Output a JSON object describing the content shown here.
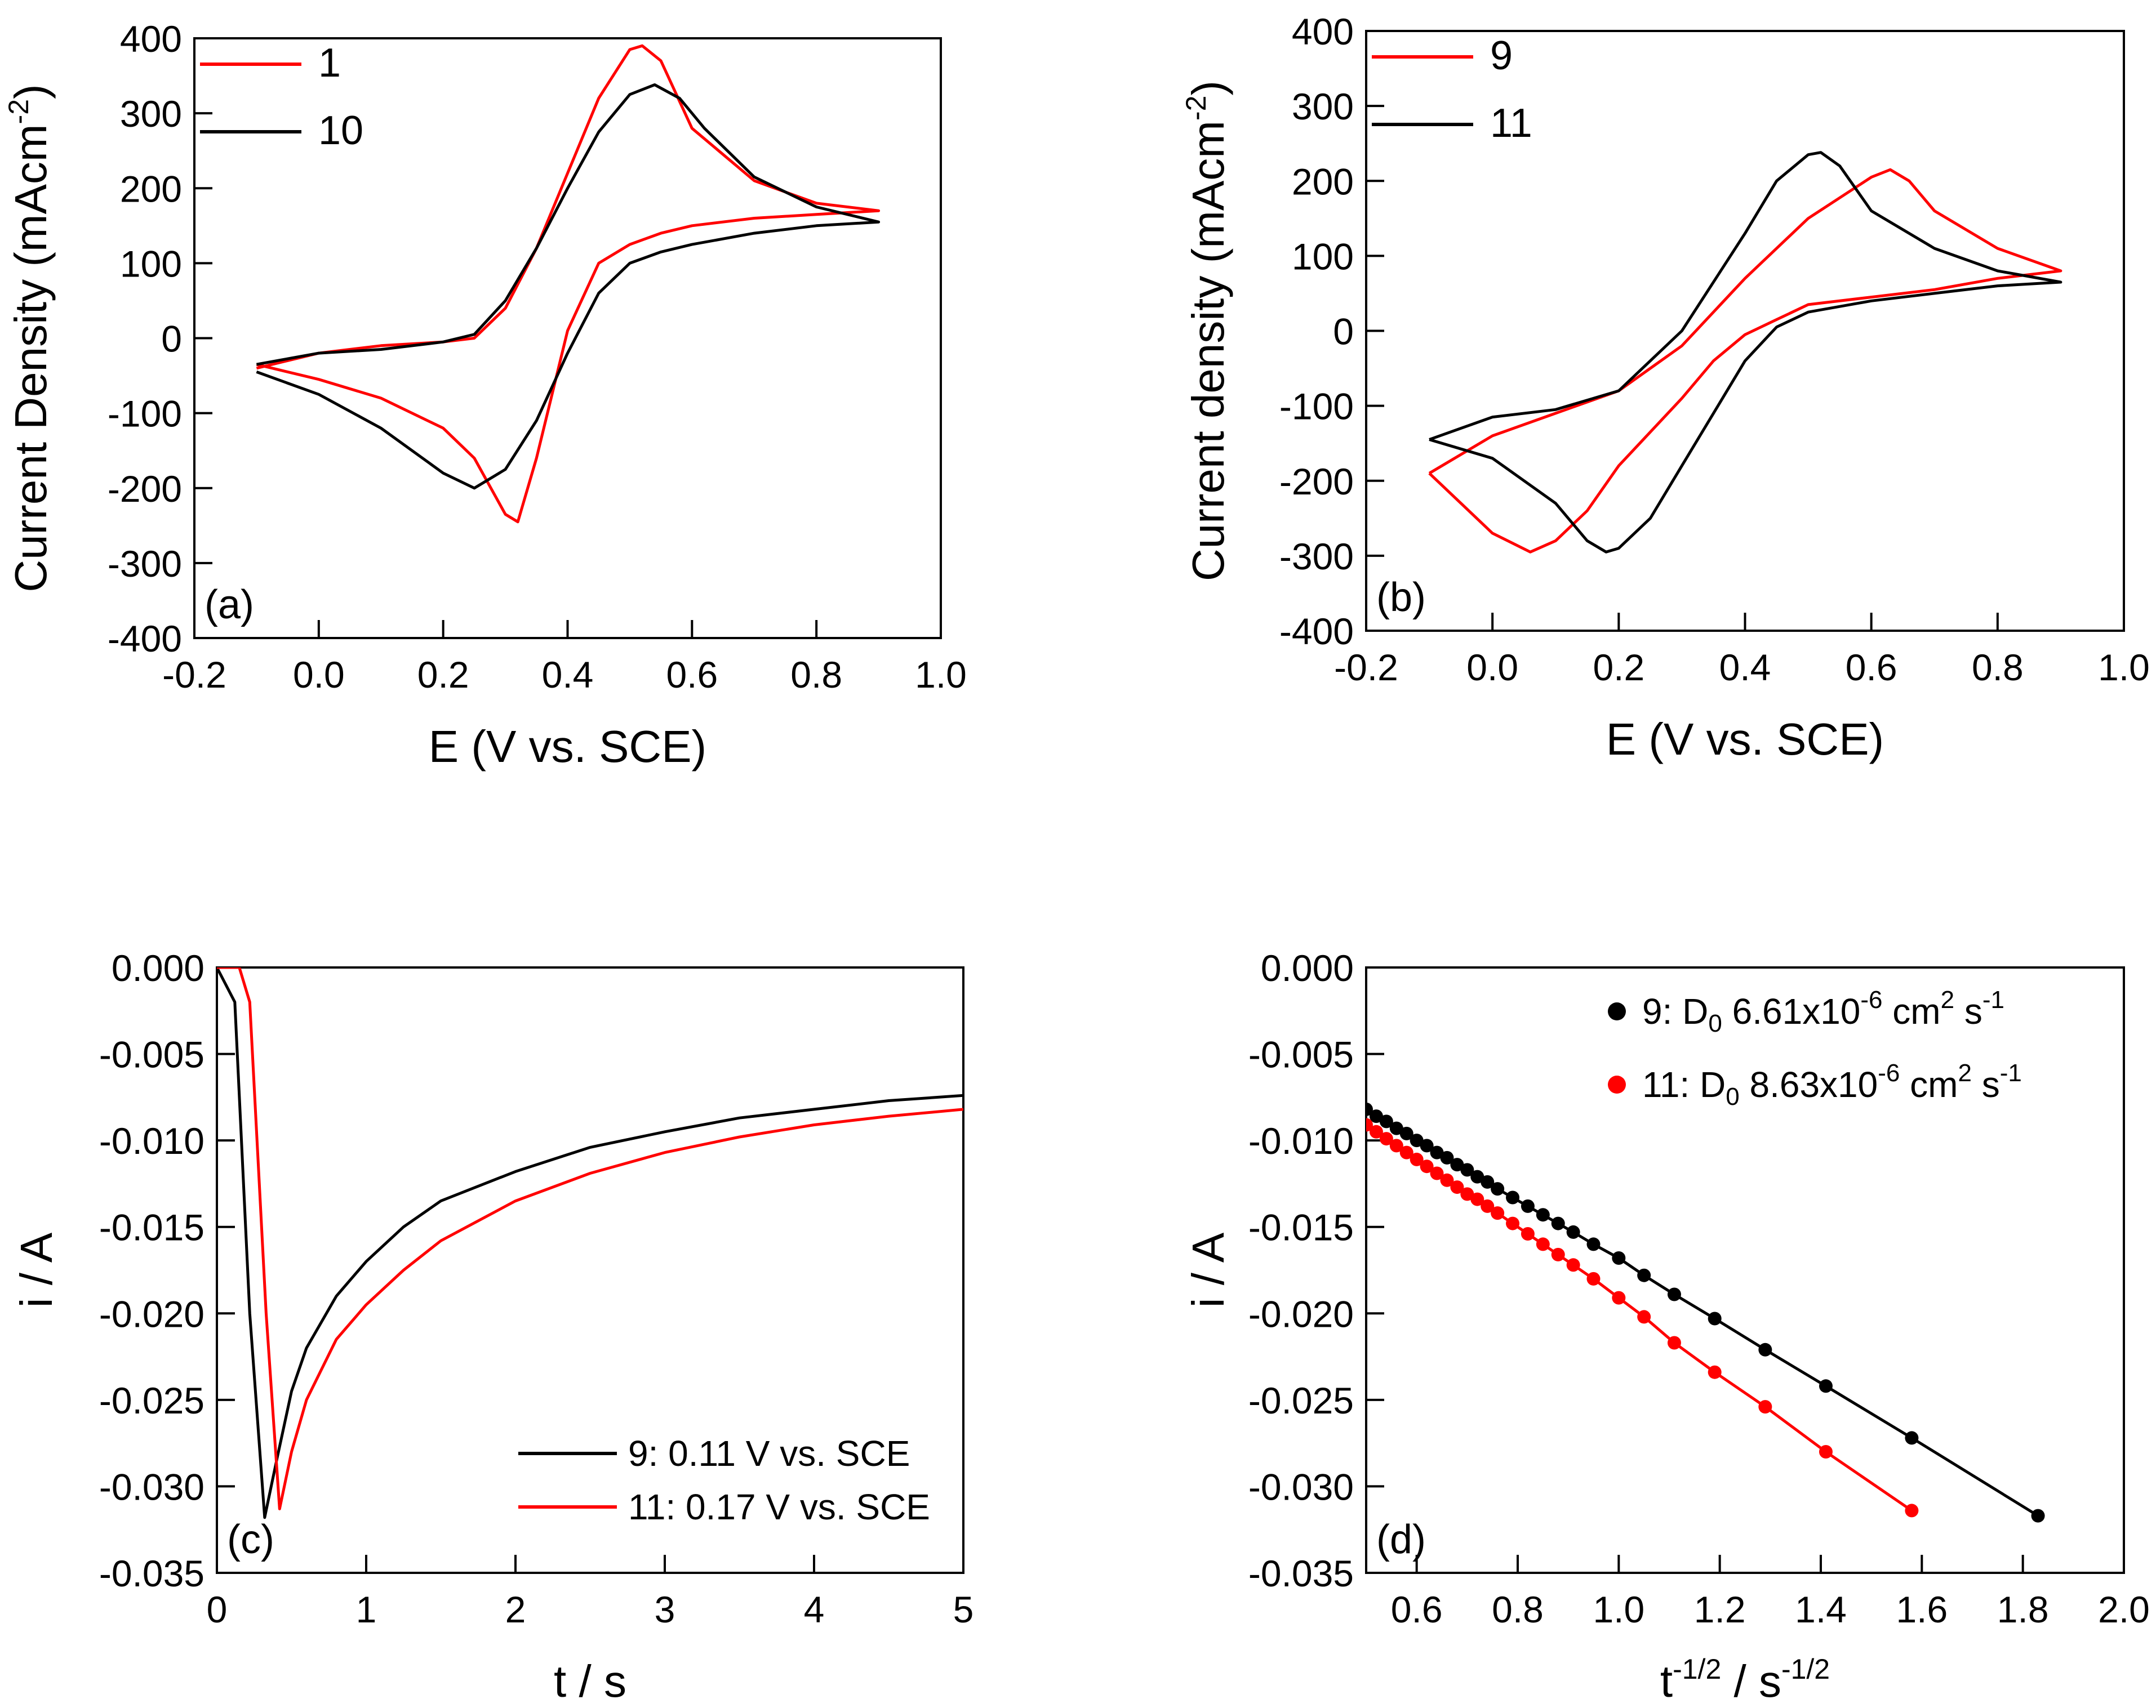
{
  "figure": {
    "colors": {
      "black": "#000000",
      "red": "#ff0000"
    },
    "panels": [
      "a",
      "b",
      "c",
      "d"
    ]
  },
  "chart_data": [
    {
      "id": "a",
      "type": "line",
      "panel_label": "(a)",
      "title": "",
      "xlabel": "E (V vs. SCE)",
      "ylabel_main": "Current Density (mAcm",
      "ylabel_sup": "-2",
      "ylabel_end": ")",
      "xlim": [
        -0.2,
        1.0
      ],
      "ylim": [
        -400,
        400
      ],
      "xticks": [
        -0.2,
        0.0,
        0.2,
        0.4,
        0.6,
        0.8,
        1.0
      ],
      "xtick_labels": [
        "-0.2",
        "0.0",
        "0.2",
        "0.4",
        "0.6",
        "0.8",
        "1.0"
      ],
      "yticks": [
        -400,
        -300,
        -200,
        -100,
        0,
        100,
        200,
        300,
        400
      ],
      "ytick_labels": [
        "-400",
        "-300",
        "-200",
        "-100",
        "0",
        "100",
        "200",
        "300",
        "400"
      ],
      "legend_position": "top-left",
      "grid": false,
      "series": [
        {
          "name": "1",
          "color": "#ff0000",
          "marker": "none",
          "x": [
            -0.1,
            0.0,
            0.1,
            0.2,
            0.25,
            0.3,
            0.35,
            0.4,
            0.45,
            0.5,
            0.52,
            0.55,
            0.6,
            0.7,
            0.8,
            0.9,
            0.8,
            0.7,
            0.6,
            0.55,
            0.5,
            0.45,
            0.4,
            0.35,
            0.32,
            0.3,
            0.25,
            0.2,
            0.1,
            0.0,
            -0.1
          ],
          "y": [
            -40,
            -20,
            -10,
            -5,
            0,
            40,
            120,
            220,
            320,
            385,
            390,
            370,
            280,
            210,
            180,
            170,
            165,
            160,
            150,
            140,
            125,
            100,
            10,
            -160,
            -245,
            -235,
            -160,
            -120,
            -80,
            -55,
            -35
          ]
        },
        {
          "name": "10",
          "color": "#000000",
          "marker": "none",
          "x": [
            -0.1,
            0.0,
            0.1,
            0.2,
            0.25,
            0.3,
            0.35,
            0.4,
            0.45,
            0.5,
            0.54,
            0.58,
            0.62,
            0.7,
            0.8,
            0.9,
            0.8,
            0.7,
            0.6,
            0.55,
            0.5,
            0.45,
            0.4,
            0.35,
            0.3,
            0.25,
            0.2,
            0.1,
            0.0,
            -0.1
          ],
          "y": [
            -35,
            -20,
            -15,
            -5,
            5,
            50,
            120,
            200,
            275,
            325,
            338,
            320,
            280,
            215,
            175,
            155,
            150,
            140,
            125,
            115,
            100,
            60,
            -20,
            -110,
            -175,
            -200,
            -180,
            -120,
            -75,
            -45
          ]
        }
      ]
    },
    {
      "id": "b",
      "type": "line",
      "panel_label": "(b)",
      "title": "",
      "xlabel": "E (V vs. SCE)",
      "ylabel_main": "Current density (mAcm",
      "ylabel_sup": "-2",
      "ylabel_end": ")",
      "xlim": [
        -0.2,
        1.0
      ],
      "ylim": [
        -400,
        400
      ],
      "xticks": [
        -0.2,
        0.0,
        0.2,
        0.4,
        0.6,
        0.8,
        1.0
      ],
      "xtick_labels": [
        "-0.2",
        "0.0",
        "0.2",
        "0.4",
        "0.6",
        "0.8",
        "1.0"
      ],
      "yticks": [
        -400,
        -300,
        -200,
        -100,
        0,
        100,
        200,
        300,
        400
      ],
      "ytick_labels": [
        "-400",
        "-300",
        "-200",
        "-100",
        "0",
        "100",
        "200",
        "300",
        "400"
      ],
      "legend_position": "top-left",
      "grid": false,
      "series": [
        {
          "name": "9",
          "color": "#ff0000",
          "marker": "none",
          "x": [
            -0.1,
            0.0,
            0.1,
            0.2,
            0.3,
            0.4,
            0.5,
            0.6,
            0.63,
            0.66,
            0.7,
            0.8,
            0.9,
            0.8,
            0.7,
            0.6,
            0.5,
            0.45,
            0.4,
            0.35,
            0.3,
            0.2,
            0.15,
            0.1,
            0.06,
            0.0,
            -0.1
          ],
          "y": [
            -190,
            -140,
            -110,
            -80,
            -20,
            70,
            150,
            205,
            215,
            200,
            160,
            110,
            80,
            70,
            55,
            45,
            35,
            15,
            -5,
            -40,
            -90,
            -180,
            -240,
            -280,
            -295,
            -270,
            -190
          ]
        },
        {
          "name": "11",
          "color": "#000000",
          "marker": "none",
          "x": [
            -0.1,
            0.0,
            0.1,
            0.2,
            0.3,
            0.4,
            0.45,
            0.5,
            0.52,
            0.55,
            0.6,
            0.7,
            0.8,
            0.9,
            0.8,
            0.7,
            0.6,
            0.5,
            0.45,
            0.4,
            0.35,
            0.3,
            0.25,
            0.2,
            0.18,
            0.15,
            0.1,
            0.0,
            -0.1
          ],
          "y": [
            -145,
            -115,
            -105,
            -80,
            0,
            130,
            200,
            235,
            238,
            220,
            160,
            110,
            80,
            65,
            60,
            50,
            40,
            25,
            5,
            -40,
            -110,
            -180,
            -250,
            -290,
            -295,
            -280,
            -230,
            -170,
            -145
          ]
        }
      ]
    },
    {
      "id": "c",
      "type": "line",
      "panel_label": "(c)",
      "title": "",
      "xlabel": "t / s",
      "ylabel": "i / A",
      "xlim": [
        0,
        5
      ],
      "ylim": [
        -0.035,
        0.0
      ],
      "xticks": [
        0,
        1,
        2,
        3,
        4,
        5
      ],
      "xtick_labels": [
        "0",
        "1",
        "2",
        "3",
        "4",
        "5"
      ],
      "yticks": [
        0.0,
        -0.005,
        -0.01,
        -0.015,
        -0.02,
        -0.025,
        -0.03,
        -0.035
      ],
      "ytick_labels": [
        "0.000",
        "-0.005",
        "-0.010",
        "-0.015",
        "-0.020",
        "-0.025",
        "-0.030",
        "-0.035"
      ],
      "legend_position": "bottom-right",
      "grid": false,
      "series": [
        {
          "name": "9: 0.11 V vs. SCE",
          "color": "#000000",
          "marker": "none",
          "x": [
            0.0,
            0.12,
            0.22,
            0.32,
            0.4,
            0.5,
            0.6,
            0.8,
            1.0,
            1.25,
            1.5,
            2.0,
            2.5,
            3.0,
            3.5,
            4.0,
            4.5,
            5.0
          ],
          "y": [
            0.0,
            -0.002,
            -0.02,
            -0.0318,
            -0.0285,
            -0.0245,
            -0.022,
            -0.019,
            -0.017,
            -0.015,
            -0.0135,
            -0.0118,
            -0.0104,
            -0.0095,
            -0.0087,
            -0.0082,
            -0.0077,
            -0.0074
          ]
        },
        {
          "name": "11: 0.17 V vs. SCE",
          "color": "#ff0000",
          "marker": "none",
          "x": [
            0.0,
            0.15,
            0.22,
            0.33,
            0.42,
            0.5,
            0.6,
            0.8,
            1.0,
            1.25,
            1.5,
            2.0,
            2.5,
            3.0,
            3.5,
            4.0,
            4.5,
            5.0
          ],
          "y": [
            0.0,
            0.0,
            -0.002,
            -0.02,
            -0.0313,
            -0.028,
            -0.025,
            -0.0215,
            -0.0195,
            -0.0175,
            -0.0158,
            -0.0135,
            -0.0119,
            -0.0107,
            -0.0098,
            -0.0091,
            -0.0086,
            -0.0082
          ]
        }
      ]
    },
    {
      "id": "d",
      "type": "scatter",
      "panel_label": "(d)",
      "title": "",
      "xlabel_main": "t",
      "xlabel_sup": "-1/2",
      "xlabel_mid": " / s",
      "xlabel_sup2": "-1/2",
      "ylabel": "i / A",
      "xlim": [
        0.5,
        2.0
      ],
      "ylim": [
        -0.035,
        0.0
      ],
      "xticks": [
        0.6,
        0.8,
        1.0,
        1.2,
        1.4,
        1.6,
        1.8,
        2.0
      ],
      "xtick_labels": [
        "0.6",
        "0.8",
        "1.0",
        "1.2",
        "1.4",
        "1.6",
        "1.8",
        "2.0"
      ],
      "yticks": [
        0.0,
        -0.005,
        -0.01,
        -0.015,
        -0.02,
        -0.025,
        -0.03,
        -0.035
      ],
      "ytick_labels": [
        "0.000",
        "-0.005",
        "-0.010",
        "-0.015",
        "-0.020",
        "-0.025",
        "-0.030",
        "-0.035"
      ],
      "legend_position": "top-right",
      "grid": false,
      "series": [
        {
          "name": "9: D0 6.61x10-6 cm2 s-1",
          "legend_parts": {
            "pre": "9: D",
            "sub": "0",
            "mid": " 6.61x10",
            "sup1": "-6",
            "unit1": " cm",
            "sup2": "2",
            "unit2": " s",
            "sup3": "-1"
          },
          "color": "#000000",
          "marker": "circle",
          "x": [
            0.5,
            0.52,
            0.54,
            0.56,
            0.58,
            0.6,
            0.62,
            0.64,
            0.66,
            0.68,
            0.7,
            0.72,
            0.74,
            0.76,
            0.79,
            0.82,
            0.85,
            0.88,
            0.91,
            0.95,
            1.0,
            1.05,
            1.11,
            1.19,
            1.29,
            1.41,
            1.58,
            1.83
          ],
          "y": [
            -0.0082,
            -0.0086,
            -0.0089,
            -0.0093,
            -0.0096,
            -0.01,
            -0.0103,
            -0.0107,
            -0.011,
            -0.0114,
            -0.0117,
            -0.0121,
            -0.0124,
            -0.0128,
            -0.0133,
            -0.0138,
            -0.0143,
            -0.0148,
            -0.0153,
            -0.016,
            -0.0168,
            -0.0178,
            -0.0189,
            -0.0203,
            -0.0221,
            -0.0242,
            -0.0272,
            -0.0317
          ]
        },
        {
          "name": "11: D0 8.63x10-6 cm2 s-1",
          "legend_parts": {
            "pre": "11: D",
            "sub": "0",
            "mid": " 8.63x10",
            "sup1": "-6",
            "unit1": " cm",
            "sup2": "2",
            "unit2": " s",
            "sup3": "-1"
          },
          "color": "#ff0000",
          "marker": "circle",
          "x": [
            0.5,
            0.52,
            0.54,
            0.56,
            0.58,
            0.6,
            0.62,
            0.64,
            0.66,
            0.68,
            0.7,
            0.72,
            0.74,
            0.76,
            0.79,
            0.82,
            0.85,
            0.88,
            0.91,
            0.95,
            1.0,
            1.05,
            1.11,
            1.19,
            1.29,
            1.41,
            1.58
          ],
          "y": [
            -0.0091,
            -0.0095,
            -0.0099,
            -0.0103,
            -0.0107,
            -0.0111,
            -0.0115,
            -0.0119,
            -0.0123,
            -0.0127,
            -0.0131,
            -0.0134,
            -0.0138,
            -0.0142,
            -0.0148,
            -0.0154,
            -0.016,
            -0.0166,
            -0.0172,
            -0.018,
            -0.0191,
            -0.0202,
            -0.0217,
            -0.0234,
            -0.0254,
            -0.028,
            -0.0314
          ]
        }
      ]
    }
  ]
}
